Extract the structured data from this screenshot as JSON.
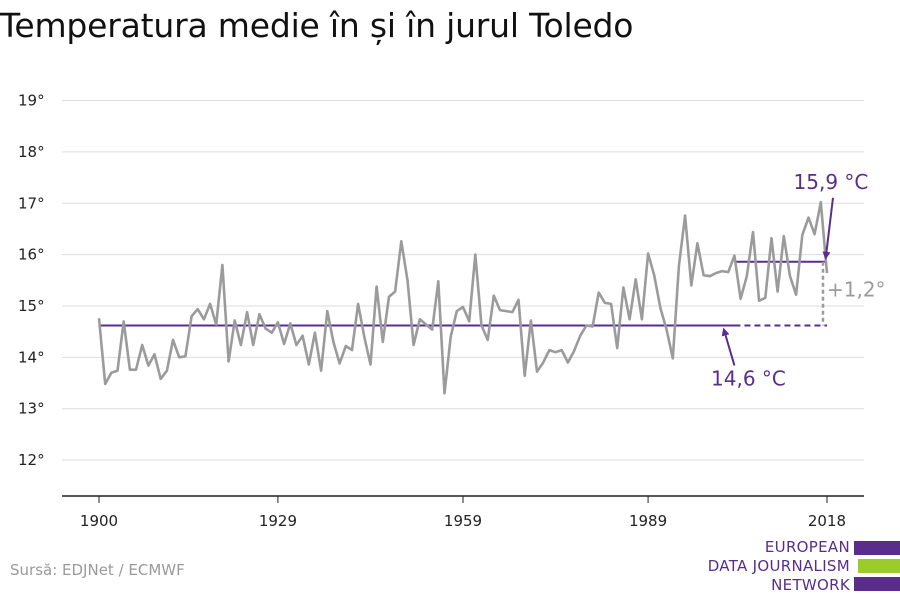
{
  "title": "Temperatura medie în și în jurul Toledo",
  "source": "Sursă: EDJNet / ECMWF",
  "logo": {
    "lines": [
      "EUROPEAN",
      "DATA JOURNALISM",
      "NETWORK"
    ],
    "colors": {
      "purple": "#5a2d8c",
      "green": "#9bcc2a"
    }
  },
  "colors": {
    "line": "#9b9b9b",
    "mean": "#5a2d8c",
    "grid": "#dddddd",
    "axis": "#222222",
    "diff": "#9b9b9b"
  },
  "chart_data": {
    "type": "line",
    "title": "Temperatura medie în și în jurul Toledo",
    "xlabel": "",
    "ylabel": "",
    "x_ticks": [
      1900,
      1929,
      1959,
      1989,
      2018
    ],
    "y_ticks": [
      "12°",
      "13°",
      "14°",
      "15°",
      "16°",
      "17°",
      "18°",
      "19°"
    ],
    "ylim": [
      11.3,
      19.4
    ],
    "xlim": [
      1894,
      2024
    ],
    "grid": true,
    "series": [
      {
        "x_start": 1900,
        "x_end": 2018,
        "values": [
          14.76,
          13.48,
          13.7,
          13.74,
          14.7,
          13.76,
          13.76,
          14.24,
          13.84,
          14.06,
          13.58,
          13.74,
          14.34,
          14.0,
          14.02,
          14.8,
          14.94,
          14.74,
          15.04,
          14.64,
          15.8,
          13.92,
          14.72,
          14.24,
          14.88,
          14.24,
          14.84,
          14.56,
          14.48,
          14.68,
          14.26,
          14.66,
          14.24,
          14.42,
          13.86,
          14.48,
          13.74,
          14.9,
          14.3,
          13.88,
          14.22,
          14.14,
          15.04,
          14.4,
          13.86,
          15.38,
          14.3,
          15.18,
          15.28,
          16.26,
          15.5,
          14.24,
          14.74,
          14.64,
          14.54,
          15.48,
          13.3,
          14.4,
          14.9,
          14.98,
          14.7,
          16.0,
          14.62,
          14.34,
          15.2,
          14.92,
          14.9,
          14.88,
          15.12,
          13.64,
          14.72,
          13.72,
          13.9,
          14.14,
          14.1,
          14.14,
          13.9,
          14.12,
          14.42,
          14.62,
          14.6,
          15.26,
          15.06,
          15.04,
          14.18,
          15.36,
          14.74,
          15.52,
          14.74,
          16.02,
          15.6,
          14.96,
          14.54,
          13.98,
          15.78,
          16.76,
          15.4,
          16.22,
          15.6,
          15.58,
          15.64,
          15.68,
          15.66,
          15.98,
          15.14,
          15.58,
          16.44,
          15.1,
          15.16,
          16.32,
          15.28,
          16.36,
          15.58,
          15.22,
          16.38,
          16.72,
          16.4,
          17.02,
          15.64
        ]
      }
    ],
    "reference_lines": [
      {
        "label": "14,6 °C",
        "value": 14.62,
        "x_from": 1900,
        "x_to": 2018,
        "solid_until": 2003
      },
      {
        "label": "15,9 °C",
        "value": 15.86,
        "x_from": 2003,
        "x_to": 2018
      }
    ],
    "difference_label": "+1,2°"
  }
}
